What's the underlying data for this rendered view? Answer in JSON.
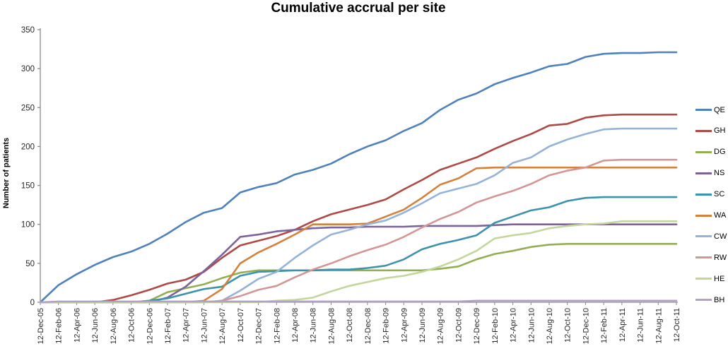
{
  "chart_data": {
    "type": "line",
    "title": "Cumulative accrual per site",
    "xlabel": "",
    "ylabel": "Number of patients",
    "ylim": [
      0,
      350
    ],
    "ytick_step": 50,
    "grid": false,
    "legend_position": "right",
    "axis_color": "#8a8a8a",
    "tick_label_color": "#262626",
    "x": [
      "12-Dec-05",
      "12-Feb-06",
      "12-Apr-06",
      "12-Jun-06",
      "12-Aug-06",
      "12-Oct-06",
      "12-Dec-06",
      "12-Feb-07",
      "12-Apr-07",
      "12-Jun-07",
      "12-Aug-07",
      "12-Oct-07",
      "12-Dec-07",
      "12-Feb-08",
      "12-Apr-08",
      "12-Jun-08",
      "12-Aug-08",
      "12-Oct-08",
      "12-Dec-08",
      "12-Feb-09",
      "12-Apr-09",
      "12-Jun-09",
      "12-Aug-09",
      "12-Oct-09",
      "12-Dec-09",
      "12-Feb-10",
      "12-Apr-10",
      "12-Jun-10",
      "12-Aug-10",
      "12-Oct-10",
      "12-Dec-10",
      "12-Feb-11",
      "12-Apr-11",
      "12-Jun-11",
      "12-Aug-11",
      "12-Oct-11"
    ],
    "series": [
      {
        "name": "QE",
        "color": "#4F81BD",
        "values": [
          0,
          22,
          36,
          48,
          58,
          65,
          75,
          88,
          103,
          115,
          121,
          141,
          148,
          153,
          164,
          170,
          178,
          190,
          200,
          208,
          220,
          230,
          247,
          260,
          268,
          280,
          288,
          295,
          303,
          306,
          315,
          319,
          320,
          320,
          321,
          321
        ]
      },
      {
        "name": "GH",
        "color": "#AE4A45",
        "values": [
          0,
          0,
          0,
          0,
          3,
          9,
          16,
          24,
          29,
          39,
          57,
          73,
          79,
          85,
          93,
          104,
          113,
          119,
          125,
          132,
          145,
          157,
          170,
          178,
          186,
          197,
          207,
          216,
          227,
          229,
          237,
          240,
          241,
          241,
          241,
          241
        ]
      },
      {
        "name": "DG",
        "color": "#94AE53",
        "values": [
          0,
          0,
          0,
          0,
          0,
          0,
          2,
          13,
          18,
          23,
          31,
          38,
          41,
          41,
          41,
          41,
          41,
          41,
          41,
          41,
          41,
          41,
          43,
          46,
          55,
          62,
          66,
          71,
          74,
          75,
          75,
          75,
          75,
          75,
          75,
          75
        ]
      },
      {
        "name": "NS",
        "color": "#7D639B",
        "values": [
          0,
          0,
          0,
          0,
          0,
          0,
          0,
          6,
          20,
          40,
          61,
          84,
          87,
          91,
          93,
          95,
          96,
          96,
          97,
          97,
          97,
          98,
          98,
          98,
          98,
          99,
          100,
          100,
          100,
          100,
          100,
          100,
          100,
          100,
          100,
          100
        ]
      },
      {
        "name": "SC",
        "color": "#3D93AB",
        "values": [
          0,
          0,
          0,
          0,
          0,
          0,
          2,
          5,
          11,
          17,
          20,
          34,
          39,
          40,
          41,
          41,
          42,
          42,
          44,
          47,
          55,
          68,
          75,
          80,
          86,
          102,
          110,
          118,
          122,
          130,
          134,
          135,
          135,
          135,
          135,
          135
        ]
      },
      {
        "name": "WA",
        "color": "#D4813B",
        "values": [
          0,
          0,
          0,
          0,
          0,
          0,
          0,
          0,
          0,
          2,
          17,
          50,
          64,
          75,
          87,
          100,
          100,
          100,
          101,
          110,
          119,
          134,
          151,
          159,
          172,
          173,
          173,
          173,
          173,
          173,
          173,
          173,
          173,
          173,
          173,
          173
        ]
      },
      {
        "name": "CW",
        "color": "#95B3D7",
        "values": [
          0,
          0,
          0,
          0,
          0,
          0,
          0,
          0,
          0,
          0,
          2,
          15,
          30,
          39,
          57,
          73,
          87,
          93,
          100,
          105,
          115,
          127,
          140,
          146,
          152,
          163,
          179,
          186,
          200,
          209,
          216,
          222,
          223,
          223,
          223,
          223
        ]
      },
      {
        "name": "RW",
        "color": "#D39694",
        "values": [
          0,
          0,
          0,
          0,
          0,
          0,
          0,
          0,
          0,
          0,
          2,
          8,
          16,
          21,
          32,
          42,
          50,
          59,
          67,
          74,
          84,
          96,
          107,
          116,
          128,
          136,
          143,
          152,
          163,
          169,
          173,
          182,
          183,
          183,
          183,
          183
        ]
      },
      {
        "name": "HE",
        "color": "#C3D69B",
        "values": [
          0,
          0,
          0,
          0,
          0,
          0,
          0,
          0,
          0,
          0,
          0,
          0,
          0,
          2,
          3,
          6,
          14,
          21,
          26,
          31,
          34,
          39,
          46,
          55,
          66,
          82,
          86,
          89,
          95,
          98,
          100,
          101,
          104,
          104,
          104,
          104
        ]
      },
      {
        "name": "BH",
        "color": "#B3A2C7",
        "values": [
          0,
          1,
          1,
          1,
          1,
          1,
          1,
          1,
          1,
          1,
          1,
          1,
          1,
          1,
          1,
          1,
          1,
          1,
          1,
          1,
          1,
          1,
          1,
          1,
          2,
          2,
          2,
          2,
          2,
          2,
          2,
          2,
          2,
          2,
          2,
          2
        ]
      }
    ]
  }
}
